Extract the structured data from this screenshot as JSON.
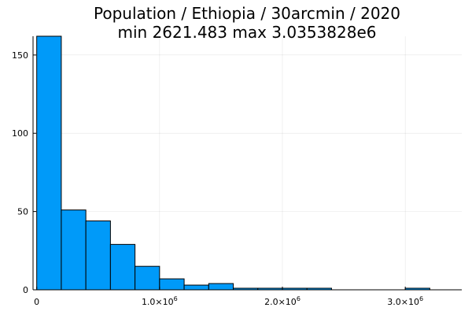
{
  "chart_data": {
    "type": "bar",
    "title": "Population / Ethiopia / 30arcmin / 2020",
    "subtitle": "min 2621.483  max 3.0353828e6",
    "xlabel": "",
    "ylabel": "",
    "grid": true,
    "legend": "none",
    "bar_color": "#009af9",
    "xlim": [
      -30000,
      3460000
    ],
    "ylim": [
      0,
      162
    ],
    "bin_width": 200000,
    "bins": [
      {
        "start": 0,
        "end": 200000,
        "value": 162
      },
      {
        "start": 200000,
        "end": 400000,
        "value": 51
      },
      {
        "start": 400000,
        "end": 600000,
        "value": 44
      },
      {
        "start": 600000,
        "end": 800000,
        "value": 29
      },
      {
        "start": 800000,
        "end": 1000000,
        "value": 15
      },
      {
        "start": 1000000,
        "end": 1200000,
        "value": 7
      },
      {
        "start": 1200000,
        "end": 1400000,
        "value": 3
      },
      {
        "start": 1400000,
        "end": 1600000,
        "value": 4
      },
      {
        "start": 1600000,
        "end": 1800000,
        "value": 1
      },
      {
        "start": 1800000,
        "end": 2000000,
        "value": 1
      },
      {
        "start": 2000000,
        "end": 2200000,
        "value": 1
      },
      {
        "start": 2200000,
        "end": 2400000,
        "value": 1
      },
      {
        "start": 3000000,
        "end": 3200000,
        "value": 1
      }
    ],
    "x_ticks": [
      {
        "value": 0,
        "base": "0",
        "exp": ""
      },
      {
        "value": 1000000,
        "base": "1.0×10",
        "exp": "6"
      },
      {
        "value": 2000000,
        "base": "2.0×10",
        "exp": "6"
      },
      {
        "value": 3000000,
        "base": "3.0×10",
        "exp": "6"
      }
    ],
    "y_ticks": [
      {
        "value": 0,
        "label": "0"
      },
      {
        "value": 50,
        "label": "50"
      },
      {
        "value": 100,
        "label": "100"
      },
      {
        "value": 150,
        "label": "150"
      }
    ]
  }
}
